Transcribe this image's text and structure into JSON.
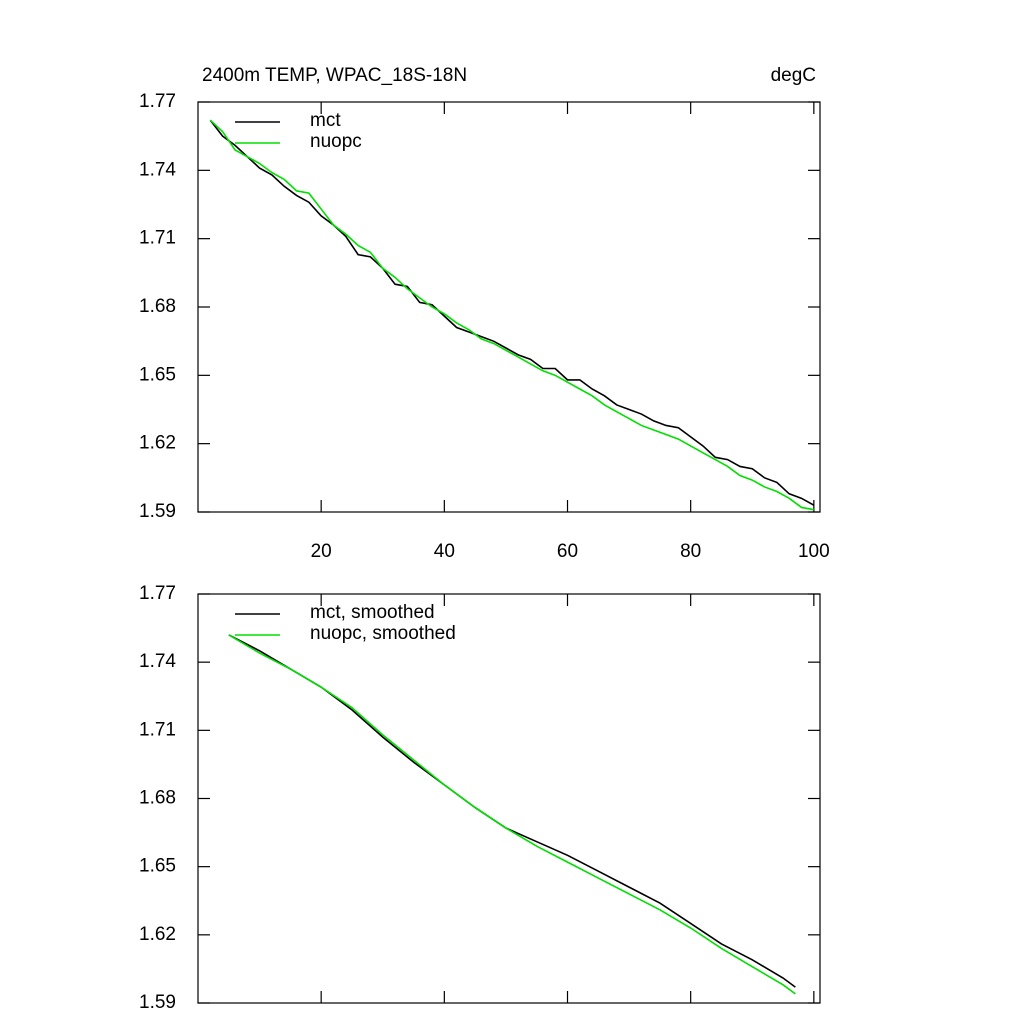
{
  "chart_data": [
    {
      "type": "line",
      "title": "2400m TEMP, WPAC_18S-18N",
      "y_units": "degC",
      "x": [
        2,
        4,
        6,
        8,
        10,
        12,
        14,
        16,
        18,
        20,
        22,
        24,
        26,
        28,
        30,
        32,
        34,
        36,
        38,
        40,
        42,
        44,
        46,
        48,
        50,
        52,
        54,
        56,
        58,
        60,
        62,
        64,
        66,
        68,
        70,
        72,
        74,
        76,
        78,
        80,
        82,
        84,
        86,
        88,
        90,
        92,
        94,
        96,
        98,
        100
      ],
      "series": [
        {
          "name": "mct",
          "color": "#000000",
          "values": [
            1.762,
            1.755,
            1.751,
            1.746,
            1.741,
            1.738,
            1.733,
            1.729,
            1.726,
            1.72,
            1.716,
            1.711,
            1.703,
            1.702,
            1.697,
            1.69,
            1.689,
            1.682,
            1.681,
            1.676,
            1.671,
            1.669,
            1.667,
            1.665,
            1.662,
            1.659,
            1.657,
            1.653,
            1.653,
            1.648,
            1.648,
            1.644,
            1.641,
            1.637,
            1.635,
            1.633,
            1.63,
            1.628,
            1.627,
            1.623,
            1.619,
            1.614,
            1.613,
            1.61,
            1.609,
            1.605,
            1.603,
            1.598,
            1.596,
            1.593
          ]
        },
        {
          "name": "nuopc",
          "color": "#00e000",
          "values": [
            1.762,
            1.757,
            1.749,
            1.746,
            1.743,
            1.739,
            1.736,
            1.731,
            1.73,
            1.723,
            1.716,
            1.712,
            1.707,
            1.704,
            1.697,
            1.693,
            1.688,
            1.684,
            1.68,
            1.677,
            1.673,
            1.67,
            1.666,
            1.664,
            1.661,
            1.658,
            1.655,
            1.652,
            1.65,
            1.647,
            1.644,
            1.641,
            1.637,
            1.634,
            1.631,
            1.628,
            1.626,
            1.624,
            1.622,
            1.619,
            1.616,
            1.613,
            1.61,
            1.606,
            1.604,
            1.601,
            1.599,
            1.596,
            1.592,
            1.591
          ]
        }
      ],
      "xlim": [
        0,
        101
      ],
      "ylim": [
        1.59,
        1.77
      ],
      "xticks": [
        20,
        40,
        60,
        80,
        100
      ],
      "yticks": [
        1.59,
        1.62,
        1.65,
        1.68,
        1.71,
        1.74,
        1.77
      ],
      "xtick_labels": true,
      "legend": "upper left"
    },
    {
      "type": "line",
      "x": [
        5,
        10,
        15,
        20,
        25,
        30,
        35,
        40,
        45,
        50,
        55,
        60,
        65,
        70,
        75,
        80,
        85,
        90,
        95,
        97
      ],
      "series": [
        {
          "name": "mct, smoothed",
          "color": "#000000",
          "values": [
            1.752,
            1.745,
            1.737,
            1.729,
            1.719,
            1.707,
            1.696,
            1.686,
            1.676,
            1.667,
            1.661,
            1.655,
            1.648,
            1.641,
            1.634,
            1.625,
            1.616,
            1.609,
            1.601,
            1.597
          ]
        },
        {
          "name": "nuopc, smoothed",
          "color": "#00e000",
          "values": [
            1.752,
            1.744,
            1.737,
            1.729,
            1.72,
            1.708,
            1.697,
            1.686,
            1.676,
            1.667,
            1.659,
            1.652,
            1.645,
            1.638,
            1.631,
            1.623,
            1.614,
            1.606,
            1.598,
            1.594
          ]
        }
      ],
      "xlim": [
        0,
        101
      ],
      "ylim": [
        1.59,
        1.77
      ],
      "xticks": [
        20,
        40,
        60,
        80,
        100
      ],
      "yticks": [
        1.59,
        1.62,
        1.65,
        1.68,
        1.71,
        1.74,
        1.77
      ],
      "xtick_labels": false,
      "legend": "upper left"
    }
  ]
}
